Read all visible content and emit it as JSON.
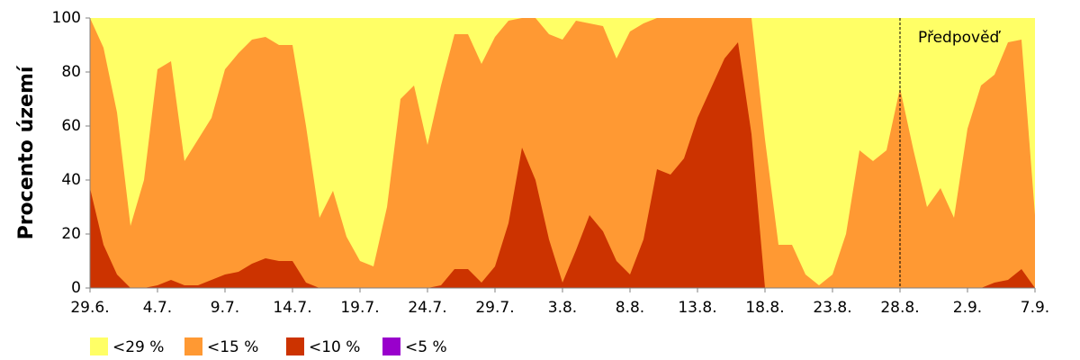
{
  "chart_data": {
    "type": "area",
    "ylabel": "Procento území",
    "categories": [
      "29.6.",
      null,
      null,
      null,
      null,
      "4.7.",
      null,
      null,
      null,
      null,
      "9.7.",
      null,
      null,
      null,
      null,
      "14.7.",
      null,
      null,
      null,
      null,
      "19.7.",
      null,
      null,
      null,
      null,
      "24.7.",
      null,
      null,
      null,
      null,
      "29.7.",
      null,
      null,
      null,
      null,
      "3.8.",
      null,
      null,
      null,
      null,
      "8.8.",
      null,
      null,
      null,
      null,
      "13.8.",
      null,
      null,
      null,
      null,
      "18.8.",
      null,
      null,
      null,
      null,
      "23.8.",
      null,
      null,
      null,
      null,
      "28.8.",
      null,
      null,
      null,
      null,
      "2.9.",
      null,
      null,
      null,
      null,
      "7.9."
    ],
    "series": [
      {
        "name": "<29 %",
        "color": "#ffff66",
        "values": [
          100,
          100,
          100,
          100,
          100,
          100,
          100,
          100,
          100,
          100,
          100,
          100,
          100,
          100,
          100,
          100,
          100,
          100,
          100,
          100,
          100,
          100,
          100,
          100,
          100,
          100,
          100,
          100,
          100,
          100,
          100,
          100,
          100,
          100,
          100,
          100,
          100,
          100,
          100,
          100,
          100,
          100,
          100,
          100,
          100,
          100,
          100,
          100,
          100,
          100,
          100,
          100,
          100,
          100,
          100,
          100,
          100,
          100,
          100,
          100,
          100,
          100,
          100,
          100,
          100,
          100,
          100,
          100,
          100,
          100,
          100
        ]
      },
      {
        "name": "<15 %",
        "color": "#ff9933",
        "values": [
          100,
          89,
          65,
          23,
          40,
          81,
          84,
          47,
          55,
          63,
          81,
          87,
          92,
          93,
          90,
          90,
          60,
          26,
          36,
          19,
          10,
          8,
          30,
          70,
          75,
          53,
          75,
          94,
          94,
          83,
          93,
          99,
          100,
          100,
          94,
          92,
          99,
          98,
          97,
          85,
          95,
          98,
          100,
          100,
          100,
          100,
          100,
          100,
          100,
          100,
          55,
          16,
          16,
          5,
          1,
          5,
          20,
          51,
          47,
          51,
          74,
          51,
          30,
          37,
          26,
          59,
          75,
          79,
          91,
          92,
          27
        ]
      },
      {
        "name": "<10 %",
        "color": "#cc3300",
        "values": [
          37,
          16,
          5,
          0,
          0,
          1,
          3,
          1,
          1,
          3,
          5,
          6,
          9,
          11,
          10,
          10,
          2,
          0,
          0,
          0,
          0,
          0,
          0,
          0,
          0,
          0,
          1,
          7,
          7,
          2,
          8,
          24,
          52,
          40,
          18,
          2,
          14,
          27,
          21,
          10,
          5,
          18,
          44,
          42,
          48,
          63,
          74,
          85,
          91,
          57,
          0,
          0,
          0,
          0,
          0,
          0,
          0,
          0,
          0,
          0,
          0,
          0,
          0,
          0,
          0,
          0,
          0,
          2,
          3,
          7,
          0
        ]
      },
      {
        "name": "<5 %",
        "color": "#9900cc",
        "values": [
          0,
          0,
          0,
          0,
          0,
          0,
          0,
          0,
          0,
          0,
          0,
          0,
          0,
          0,
          0,
          0,
          0,
          0,
          0,
          0,
          0,
          0,
          0,
          0,
          0,
          0,
          0,
          0,
          0,
          0,
          0,
          0,
          0,
          0,
          0,
          0,
          0,
          0,
          0,
          0,
          0,
          0,
          0,
          0,
          0,
          0,
          0,
          0,
          0,
          0,
          0,
          0,
          0,
          0,
          0,
          0,
          0,
          0,
          0,
          0,
          0,
          0,
          0,
          0,
          0,
          0,
          0,
          0,
          0,
          0,
          0
        ]
      }
    ],
    "ylim": [
      0,
      100
    ],
    "yticks": [
      0,
      20,
      40,
      60,
      80,
      100
    ],
    "forecast_label": "Předpověď",
    "forecast_start": "28.8."
  }
}
